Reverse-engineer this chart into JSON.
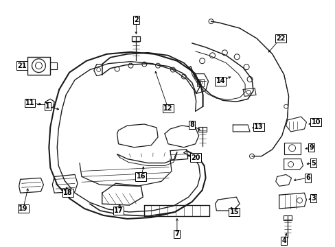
{
  "bg_color": "#ffffff",
  "line_color": "#1a1a1a",
  "fig_width": 4.89,
  "fig_height": 3.6,
  "dpi": 100,
  "label_fs": 7.0
}
